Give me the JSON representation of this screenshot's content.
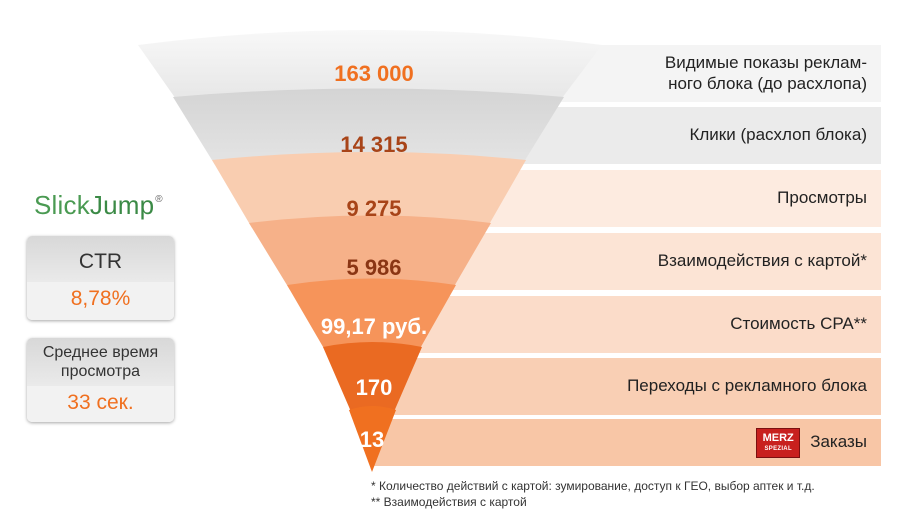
{
  "brand": {
    "slick": "Slick",
    "jump": "Jump",
    "reg": "®"
  },
  "ctr": {
    "label": "CTR",
    "value": "8,78%"
  },
  "view_time": {
    "label_line1": "Среднее время",
    "label_line2": "просмотра",
    "value": "33 сек."
  },
  "funnel": {
    "stages": [
      {
        "value": "163 000",
        "label": "Видимые показы реклам-ного блока (до расхлопа)",
        "label_line1": "Видимые показы реклам-",
        "label_line2": "ного блока (до расхлопа)",
        "fill": "#ececec",
        "band": "#f2f2f2",
        "text_color": "#f07020"
      },
      {
        "value": "14 315",
        "label": "Клики (расхлоп блока)",
        "fill": "#dcdcdc",
        "band": "#ebebeb",
        "text_color": "#a84418"
      },
      {
        "value": "9 275",
        "label": "Просмотры",
        "fill": "#f9cdb0",
        "band": "#fde9dc",
        "text_color": "#a84418"
      },
      {
        "value": "5 986",
        "label": "Взаимодействия с картой*",
        "fill": "#f6b189",
        "band": "#fce3d3",
        "text_color": "#8a3514"
      },
      {
        "value": "99,17 руб.",
        "label": "Стоимость CPA**",
        "fill": "#f6945a",
        "band": "#fbdcc8",
        "text_color": "#ffffff"
      },
      {
        "value": "170",
        "label": "Переходы с рекламного блока",
        "fill": "#ea6a22",
        "band": "#f9cfb3",
        "text_color": "#ffffff"
      },
      {
        "value": "13",
        "label": "Заказы",
        "fill": "#f07020",
        "band": "#f8c6a5",
        "text_color": "#ffffff"
      }
    ]
  },
  "orders_logo": {
    "line1": "MERZ",
    "line2": "SPEZIAL"
  },
  "footnotes": {
    "note1": "* Количество действий с картой: зумирование, доступ к ГЕО, выбор аптек и т.д.",
    "note2": "** Взаимодействия с картой"
  }
}
